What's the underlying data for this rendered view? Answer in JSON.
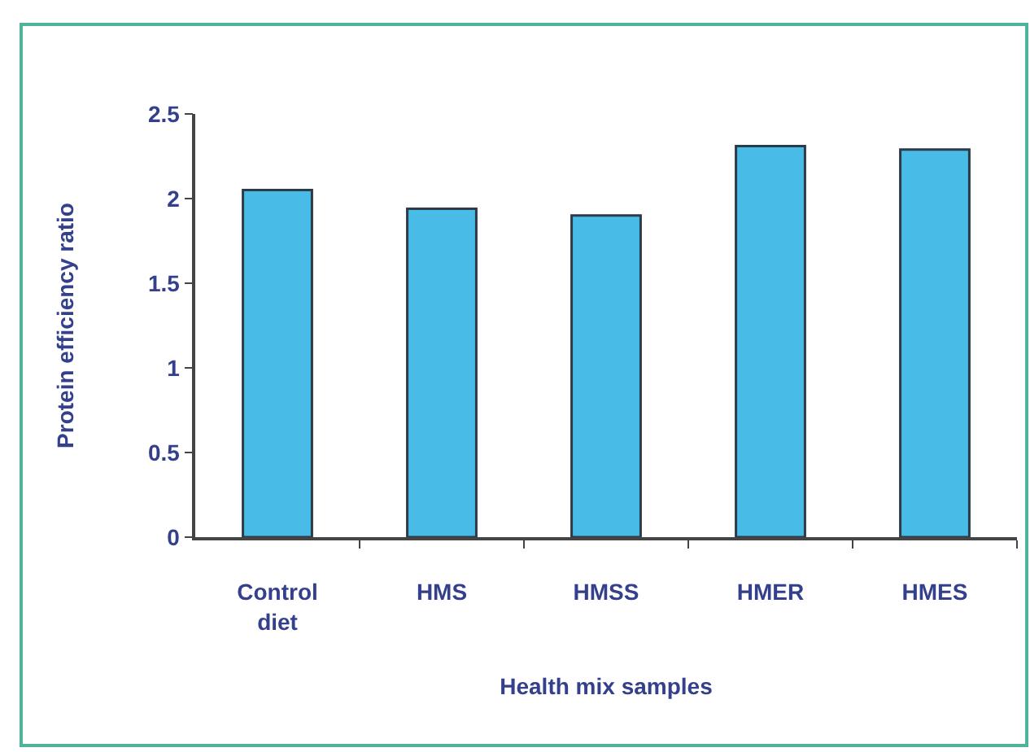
{
  "chart_data": {
    "type": "bar",
    "xlabel": "Health mix samples",
    "ylabel": "Protein efficiency ratio",
    "categories": [
      "Control diet",
      "HMS",
      "HMSS",
      "HMER",
      "HMES"
    ],
    "values": [
      2.05,
      1.94,
      1.9,
      2.31,
      2.29
    ],
    "color": "#48bbe6",
    "ylim": [
      0,
      2.5
    ],
    "yticks": [
      0,
      0.5,
      1,
      1.5,
      2,
      2.5
    ]
  }
}
